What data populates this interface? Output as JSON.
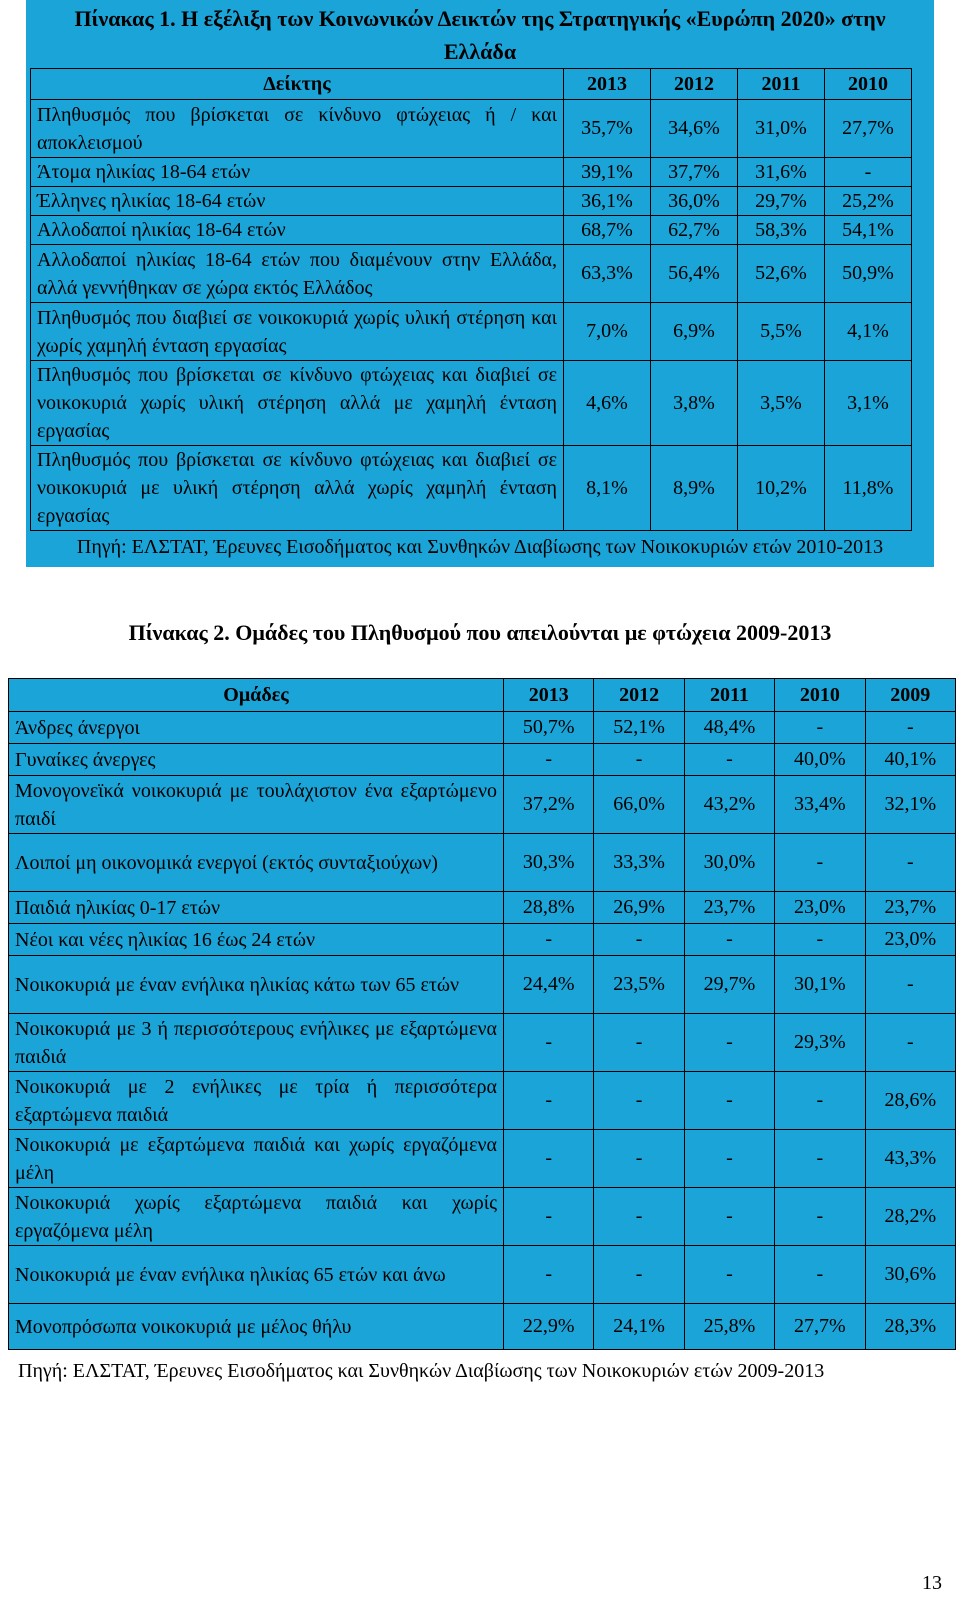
{
  "table1": {
    "title": "Πίνακας 1. Η εξέλιξη των Κοινωνικών Δεικτών της Στρατηγικής «Ευρώπη 2020» στην Ελλάδα",
    "header": [
      "Δείκτης",
      "2013",
      "2012",
      "2011",
      "2010"
    ],
    "rows": [
      {
        "label": "Πληθυσμός που βρίσκεται σε κίνδυνο φτώχειας ή / και αποκλεισμού",
        "values": [
          "35,7%",
          "34,6%",
          "31,0%",
          "27,7%"
        ]
      },
      {
        "label": "Άτομα ηλικίας 18-64 ετών",
        "values": [
          "39,1%",
          "37,7%",
          "31,6%",
          "-"
        ]
      },
      {
        "label": "Έλληνες ηλικίας 18-64 ετών",
        "values": [
          "36,1%",
          "36,0%",
          "29,7%",
          "25,2%"
        ]
      },
      {
        "label": "Αλλοδαποί ηλικίας 18-64 ετών",
        "values": [
          "68,7%",
          "62,7%",
          "58,3%",
          "54,1%"
        ]
      },
      {
        "label": "Αλλοδαποί ηλικίας 18-64 ετών που διαμένουν στην Ελλάδα, αλλά γεννήθηκαν σε χώρα εκτός Ελλάδος",
        "values": [
          "63,3%",
          "56,4%",
          "52,6%",
          "50,9%"
        ]
      },
      {
        "label": "Πληθυσμός που διαβιεί σε νοικοκυριά χωρίς υλική στέρηση και χωρίς χαμηλή ένταση εργασίας",
        "values": [
          "7,0%",
          "6,9%",
          "5,5%",
          "4,1%"
        ]
      },
      {
        "label": "Πληθυσμός που βρίσκεται σε κίνδυνο φτώχειας και διαβιεί σε νοικοκυριά χωρίς υλική στέρηση αλλά με χαμηλή ένταση εργασίας",
        "values": [
          "4,6%",
          "3,8%",
          "3,5%",
          "3,1%"
        ]
      },
      {
        "label": "Πληθυσμός που βρίσκεται σε κίνδυνο φτώχειας και διαβιεί σε νοικοκυριά με υλική στέρηση αλλά χωρίς χαμηλή ένταση εργασίας",
        "values": [
          "8,1%",
          "8,9%",
          "10,2%",
          "11,8%"
        ]
      }
    ],
    "source": "Πηγή: ΕΛΣΤΑΤ, Έρευνες Εισοδήματος και Συνθηκών Διαβίωσης των Νοικοκυριών ετών 2010-2013"
  },
  "table2": {
    "title": "Πίνακας 2. Ομάδες του Πληθυσμού που απειλούνται με φτώχεια 2009-2013",
    "header": [
      "Ομάδες",
      "2013",
      "2012",
      "2011",
      "2010",
      "2009"
    ],
    "rows": [
      {
        "label": "Άνδρες άνεργοι",
        "values": [
          "50,7%",
          "52,1%",
          "48,4%",
          "-",
          "-"
        ]
      },
      {
        "label": "Γυναίκες άνεργες",
        "values": [
          "-",
          "-",
          "-",
          "40,0%",
          "40,1%"
        ]
      },
      {
        "label": "Μονογονεϊκά νοικοκυριά με τουλάχιστον ένα εξαρτώμενο παιδί",
        "values": [
          "37,2%",
          "66,0%",
          "43,2%",
          "33,4%",
          "32,1%"
        ]
      },
      {
        "label": "Λοιποί μη οικονομικά ενεργοί (εκτός συνταξιούχων)",
        "values": [
          "30,3%",
          "33,3%",
          "30,0%",
          "-",
          "-"
        ]
      },
      {
        "label": "Παιδιά ηλικίας 0-17 ετών",
        "values": [
          "28,8%",
          "26,9%",
          "23,7%",
          "23,0%",
          "23,7%"
        ]
      },
      {
        "label": "Νέοι και νέες ηλικίας 16 έως 24 ετών",
        "values": [
          "-",
          "-",
          "-",
          "-",
          "23,0%"
        ]
      },
      {
        "label": "Νοικοκυριά με έναν ενήλικα ηλικίας κάτω των 65 ετών",
        "values": [
          "24,4%",
          "23,5%",
          "29,7%",
          "30,1%",
          "-"
        ]
      },
      {
        "label": "Νοικοκυριά με 3 ή περισσότερους ενήλικες με εξαρτώμενα παιδιά",
        "values": [
          "-",
          "-",
          "-",
          "29,3%",
          "-"
        ]
      },
      {
        "label": "Νοικοκυριά με 2 ενήλικες με τρία ή περισσότερα εξαρτώμενα παιδιά",
        "values": [
          "-",
          "-",
          "-",
          "-",
          "28,6%"
        ]
      },
      {
        "label": "Νοικοκυριά με εξαρτώμενα παιδιά και χωρίς εργαζόμενα μέλη",
        "values": [
          "-",
          "-",
          "-",
          "-",
          "43,3%"
        ]
      },
      {
        "label": "Νοικοκυριά χωρίς εξαρτώμενα παιδιά και χωρίς εργαζόμενα μέλη",
        "values": [
          "-",
          "-",
          "-",
          "-",
          "28,2%"
        ]
      },
      {
        "label": "Νοικοκυριά με έναν ενήλικα ηλικίας 65 ετών και άνω",
        "values": [
          "-",
          "-",
          "-",
          "-",
          "30,6%"
        ]
      },
      {
        "label": "Μονοπρόσωπα νοικοκυριά με μέλος θήλυ",
        "values": [
          "22,9%",
          "24,1%",
          "25,8%",
          "27,7%",
          "28,3%"
        ]
      }
    ],
    "source": "Πηγή: ΕΛΣΤΑΤ, Έρευνες Εισοδήματος και Συνθηκών Διαβίωσης των Νοικοκυριών ετών 2009-2013"
  },
  "page_number": "13",
  "colors": {
    "table_fill": "#1ba4d8"
  }
}
